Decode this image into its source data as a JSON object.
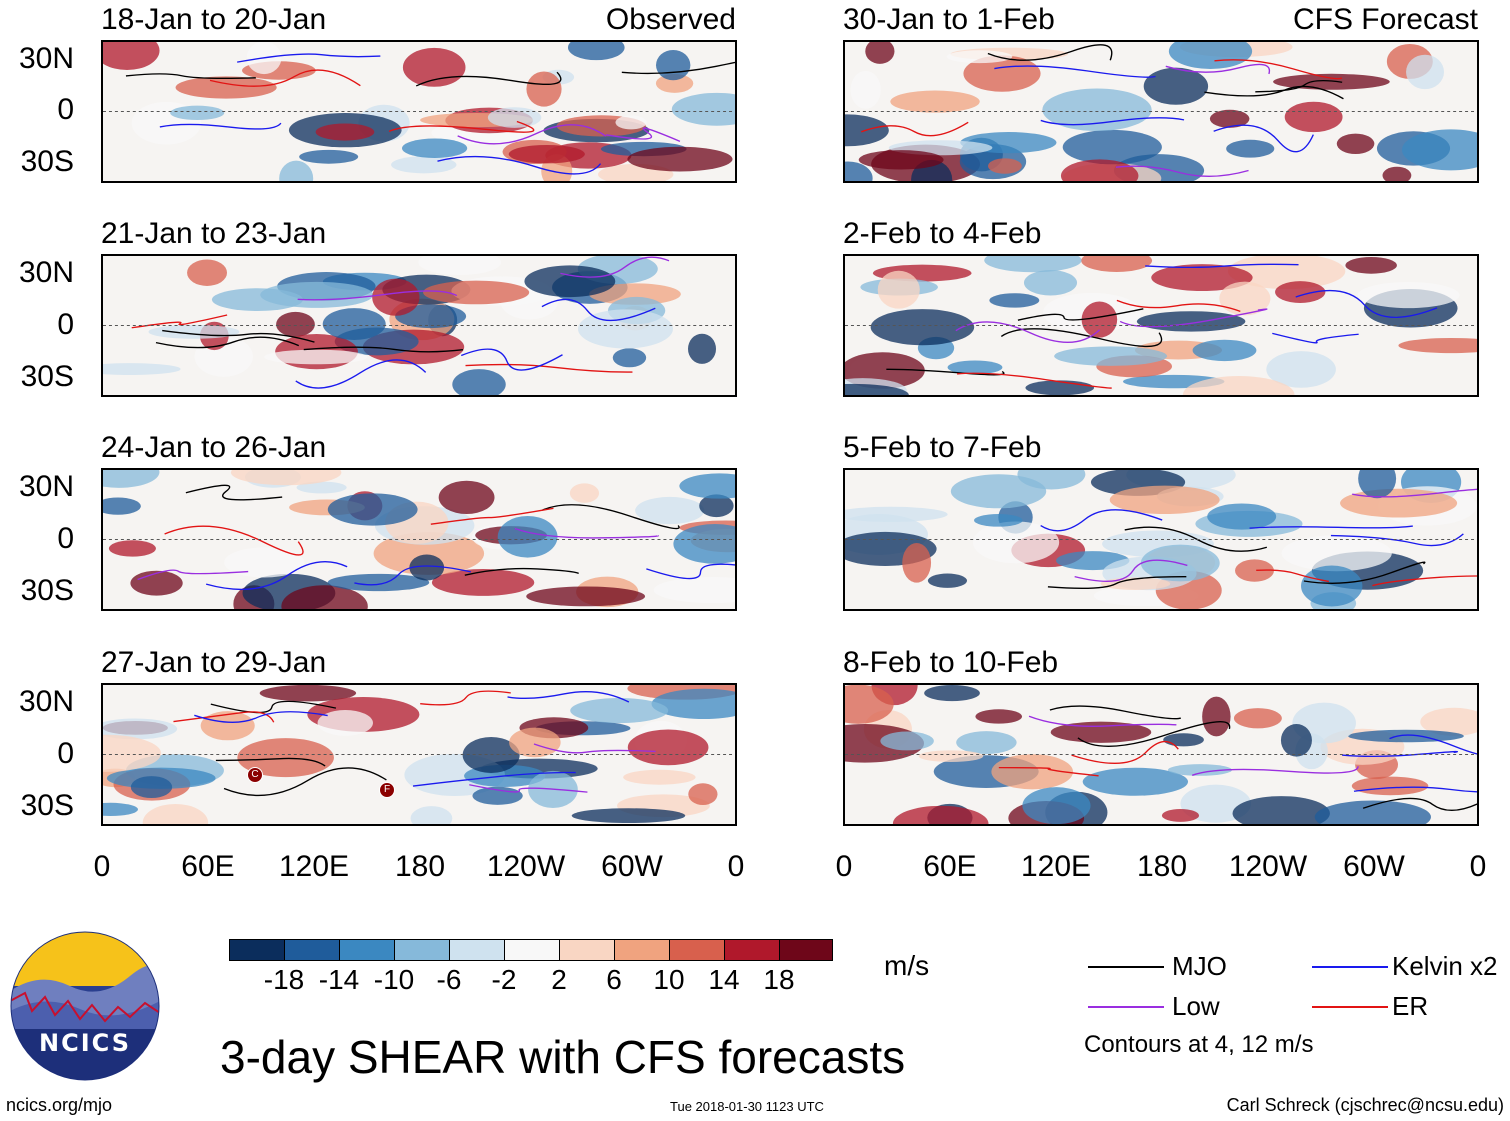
{
  "header": {
    "observed_label": "Observed",
    "forecast_label": "CFS Forecast"
  },
  "panels_left": [
    {
      "title": "18-Jan to 20-Jan"
    },
    {
      "title": "21-Jan to 23-Jan"
    },
    {
      "title": "24-Jan to 26-Jan"
    },
    {
      "title": "27-Jan to 29-Jan"
    }
  ],
  "panels_right": [
    {
      "title": "30-Jan to 1-Feb"
    },
    {
      "title": "2-Feb to 4-Feb"
    },
    {
      "title": "5-Feb to 7-Feb"
    },
    {
      "title": "8-Feb to 10-Feb"
    }
  ],
  "axes": {
    "lat_labels": [
      "30N",
      "0",
      "30S"
    ],
    "lon_labels": [
      "0",
      "60E",
      "120E",
      "180",
      "120W",
      "60W",
      "0"
    ]
  },
  "storm_markers": [
    "C",
    "F"
  ],
  "colorbar": {
    "unit": "m/s",
    "tick_labels": [
      "-18",
      "-14",
      "-10",
      "-6",
      "-2",
      "2",
      "6",
      "10",
      "14",
      "18"
    ],
    "colors": [
      "#0b2d5c",
      "#1f5c9b",
      "#3b88c1",
      "#86b9da",
      "#cfe2ef",
      "#f8f8f8",
      "#f9d6c3",
      "#f0a37f",
      "#d8604d",
      "#b0182b",
      "#6e0619"
    ]
  },
  "legend": {
    "items": [
      {
        "label": "MJO",
        "color": "#000000"
      },
      {
        "label": "Kelvin x2",
        "color": "#1a1aee"
      },
      {
        "label": "Low",
        "color": "#9a2ee0"
      },
      {
        "label": "ER",
        "color": "#e21414"
      }
    ],
    "contours_note": "Contours at 4, 12 m/s"
  },
  "footer": {
    "logo_text": "NCICS",
    "main_title": "3-day SHEAR with CFS forecasts",
    "website": "ncics.org/mjo",
    "timestamp": "Tue 2018-01-30 1123 UTC",
    "credit": "Carl Schreck (cjschrec@ncsu.edu)"
  }
}
